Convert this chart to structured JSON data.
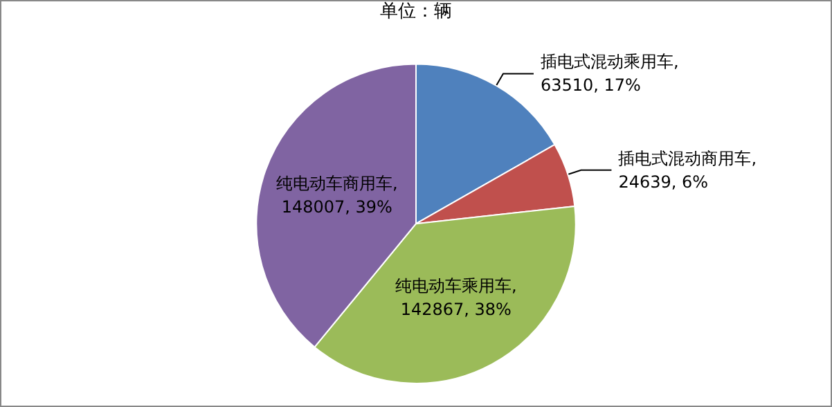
{
  "chart_data": {
    "type": "pie",
    "subtitle": "单位：辆",
    "categories": [
      "插电式混动乘用车",
      "插电式混动商用车",
      "纯电动车乘用车",
      "纯电动车商用车"
    ],
    "values": [
      63510,
      24639,
      142867,
      148007
    ],
    "value_labels": [
      ",\n63510, 17%",
      ",\n24639, 6%",
      ",\n142867, 38%",
      ",\n148007, 39%"
    ],
    "colors": [
      "#4f81bd",
      "#c0504d",
      "#9bbb59",
      "#8064a2"
    ],
    "legend": false
  }
}
